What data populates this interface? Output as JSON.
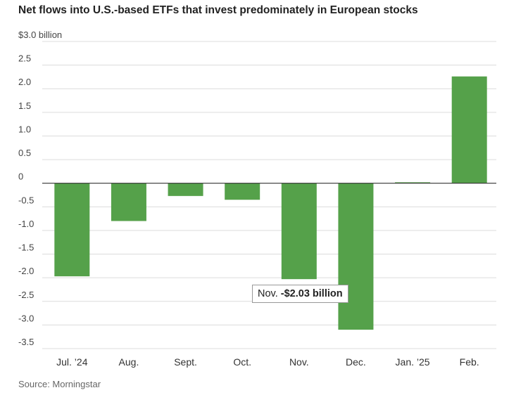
{
  "chart_data": {
    "type": "bar",
    "title": "Net flows into U.S.-based ETFs that invest predominately in European stocks",
    "categories": [
      "Jul. ’24",
      "Aug.",
      "Sept.",
      "Oct.",
      "Nov.",
      "Dec.",
      "Jan. ’25",
      "Feb."
    ],
    "values": [
      -1.97,
      -0.8,
      -0.27,
      -0.35,
      -2.03,
      -3.1,
      0.02,
      2.26
    ],
    "ylim": [
      -3.5,
      3.0
    ],
    "yticks": [
      3.0,
      2.5,
      2.0,
      1.5,
      1.0,
      0.5,
      0,
      -0.5,
      -1.0,
      -1.5,
      -2.0,
      -2.5,
      -3.0,
      -3.5
    ],
    "ytick_labels": [
      "$3.0 billion",
      "2.5",
      "2.0",
      "1.5",
      "1.0",
      "0.5",
      "0",
      "-0.5",
      "-1.0",
      "-1.5",
      "-2.0",
      "-2.5",
      "-3.0",
      "-3.5"
    ],
    "bar_color": "#55a14a",
    "grid": true,
    "annotation": {
      "category": "Nov.",
      "label": "Nov.",
      "value_text": "-$2.03 billion"
    }
  },
  "source": "Source: Morningstar"
}
